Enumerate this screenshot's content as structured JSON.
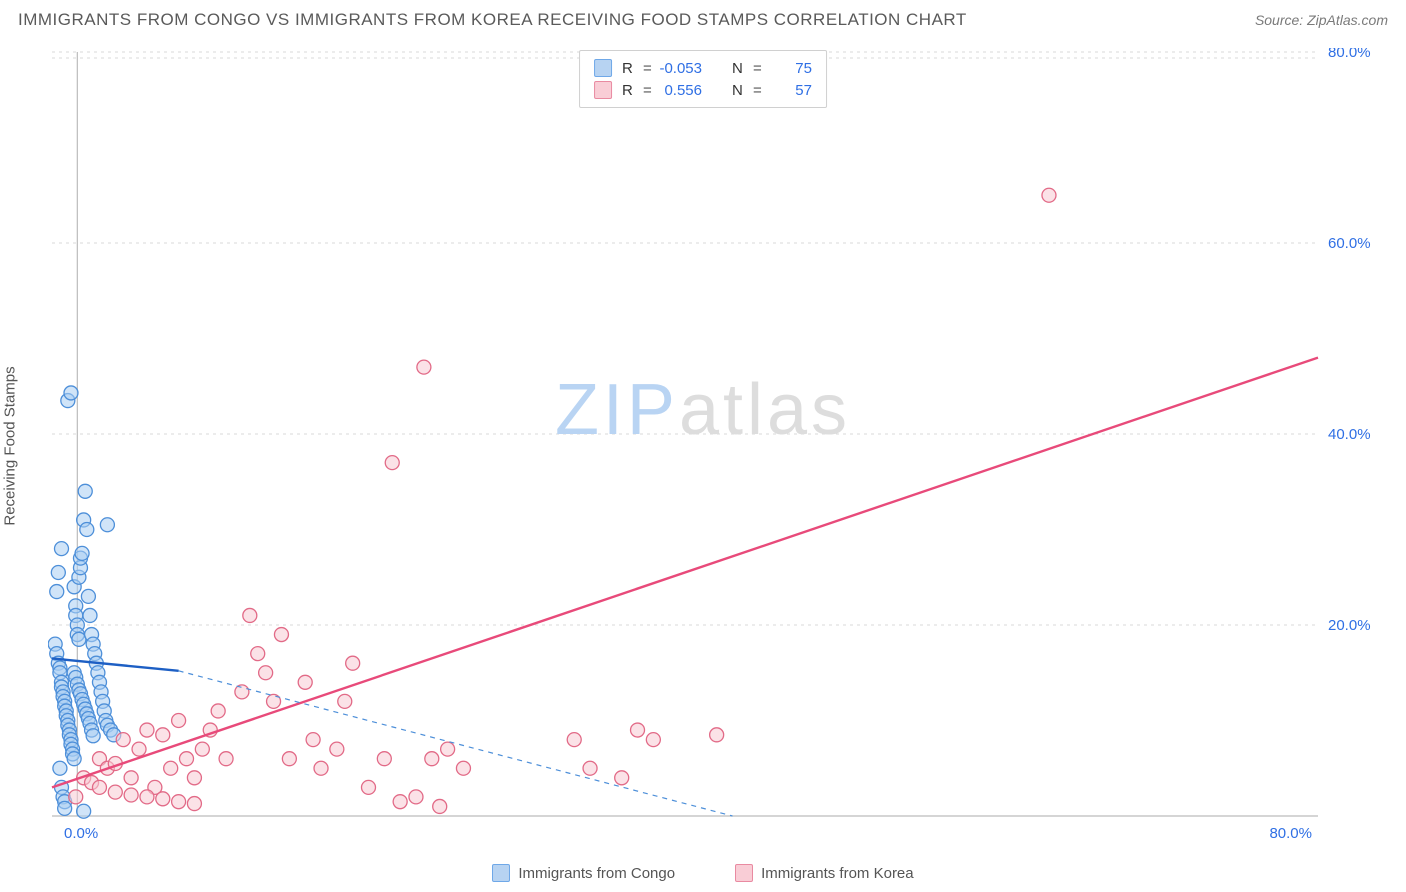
{
  "header": {
    "title": "IMMIGRANTS FROM CONGO VS IMMIGRANTS FROM KOREA RECEIVING FOOD STAMPS CORRELATION CHART",
    "source": "Source: ZipAtlas.com"
  },
  "y_axis_label": "Receiving Food Stamps",
  "watermark": {
    "left": "ZIP",
    "right": "atlas"
  },
  "legend": {
    "series_a": {
      "label": "Immigrants from Congo",
      "fill": "#b7d3f2",
      "stroke": "#6fa8e8"
    },
    "series_b": {
      "label": "Immigrants from Korea",
      "fill": "#f9cdd6",
      "stroke": "#e98aa1"
    }
  },
  "stats": {
    "a": {
      "R": "-0.053",
      "N": "75"
    },
    "b": {
      "R": "0.556",
      "N": "57"
    },
    "value_color": "#2f6fe4"
  },
  "chart": {
    "type": "scatter",
    "background_color": "#ffffff",
    "grid_color": "#d8d8d8",
    "axis_color": "#bcbcbc",
    "tick_color": "#2f6fe4",
    "tick_fontsize": 15,
    "xlim": [
      0,
      80
    ],
    "ylim": [
      0,
      80
    ],
    "x_ticks": [
      {
        "v": 0,
        "label": "0.0%"
      },
      {
        "v": 80,
        "label": "80.0%"
      }
    ],
    "y_ticks": [
      {
        "v": 20,
        "label": "20.0%"
      },
      {
        "v": 40,
        "label": "40.0%"
      },
      {
        "v": 60,
        "label": "60.0%"
      },
      {
        "v": 80,
        "label": "80.0%"
      }
    ],
    "y_axis_offset_percent": 2,
    "marker_radius": 7,
    "marker_stroke_width": 1.3,
    "marker_opacity": 0.55,
    "series_a": {
      "color_fill": "#a9cdf2",
      "color_stroke": "#4d8fd9",
      "points": [
        [
          0.2,
          18
        ],
        [
          0.3,
          17
        ],
        [
          0.4,
          16
        ],
        [
          0.5,
          15.5
        ],
        [
          0.5,
          15
        ],
        [
          0.6,
          14
        ],
        [
          0.6,
          13.5
        ],
        [
          0.7,
          13
        ],
        [
          0.7,
          12.5
        ],
        [
          0.8,
          12
        ],
        [
          0.8,
          11.5
        ],
        [
          0.9,
          11
        ],
        [
          0.9,
          10.5
        ],
        [
          1.0,
          10
        ],
        [
          1.0,
          9.5
        ],
        [
          1.1,
          9
        ],
        [
          1.1,
          8.5
        ],
        [
          1.2,
          8
        ],
        [
          1.2,
          7.5
        ],
        [
          1.3,
          7
        ],
        [
          1.3,
          6.5
        ],
        [
          1.4,
          6
        ],
        [
          1.4,
          24
        ],
        [
          1.5,
          22
        ],
        [
          1.5,
          21
        ],
        [
          1.6,
          20
        ],
        [
          1.6,
          19
        ],
        [
          1.7,
          18.5
        ],
        [
          1.7,
          25
        ],
        [
          1.8,
          26
        ],
        [
          1.8,
          27
        ],
        [
          1.9,
          27.5
        ],
        [
          2.0,
          31
        ],
        [
          2.1,
          34
        ],
        [
          2.2,
          30
        ],
        [
          2.3,
          23
        ],
        [
          2.4,
          21
        ],
        [
          2.5,
          19
        ],
        [
          2.6,
          18
        ],
        [
          2.7,
          17
        ],
        [
          2.8,
          16
        ],
        [
          2.9,
          15
        ],
        [
          3.0,
          14
        ],
        [
          3.1,
          13
        ],
        [
          3.2,
          12
        ],
        [
          3.3,
          11
        ],
        [
          3.4,
          10
        ],
        [
          3.5,
          9.5
        ],
        [
          3.7,
          9
        ],
        [
          3.9,
          8.5
        ],
        [
          1.0,
          43.5
        ],
        [
          1.2,
          44.3
        ],
        [
          3.5,
          30.5
        ],
        [
          0.5,
          5
        ],
        [
          0.6,
          3
        ],
        [
          0.7,
          2
        ],
        [
          0.8,
          1.5
        ],
        [
          0.8,
          0.8
        ],
        [
          2.0,
          0.5
        ],
        [
          0.3,
          23.5
        ],
        [
          0.4,
          25.5
        ],
        [
          0.6,
          28
        ],
        [
          1.4,
          15
        ],
        [
          1.5,
          14.5
        ],
        [
          1.6,
          13.8
        ],
        [
          1.7,
          13.2
        ],
        [
          1.8,
          12.8
        ],
        [
          1.9,
          12.2
        ],
        [
          2.0,
          11.7
        ],
        [
          2.1,
          11.2
        ],
        [
          2.2,
          10.7
        ],
        [
          2.3,
          10.2
        ],
        [
          2.4,
          9.7
        ],
        [
          2.5,
          9
        ],
        [
          2.6,
          8.4
        ]
      ],
      "trend": {
        "x1": 0,
        "y1": 16.5,
        "x2": 8,
        "y2": 15.2,
        "color": "#1d5fc4",
        "width": 2.4
      },
      "trend_extend": {
        "x1": 8,
        "y1": 15.2,
        "x2": 43,
        "y2": 0,
        "color": "#4d8fd9",
        "width": 1.2,
        "dash": "5 5"
      }
    },
    "series_b": {
      "color_fill": "#f8cad4",
      "color_stroke": "#e26a87",
      "points": [
        [
          1.5,
          2
        ],
        [
          2,
          4
        ],
        [
          2.5,
          3.5
        ],
        [
          3,
          6
        ],
        [
          3.5,
          5
        ],
        [
          4,
          5.5
        ],
        [
          4.5,
          8
        ],
        [
          5,
          4
        ],
        [
          5.5,
          7
        ],
        [
          6,
          9
        ],
        [
          6.5,
          3
        ],
        [
          7,
          8.5
        ],
        [
          7.5,
          5
        ],
        [
          8,
          10
        ],
        [
          8.5,
          6
        ],
        [
          9,
          4
        ],
        [
          9.5,
          7
        ],
        [
          10,
          9
        ],
        [
          10.5,
          11
        ],
        [
          11,
          6
        ],
        [
          12,
          13
        ],
        [
          12.5,
          21
        ],
        [
          13,
          17
        ],
        [
          13.5,
          15
        ],
        [
          14,
          12
        ],
        [
          14.5,
          19
        ],
        [
          15,
          6
        ],
        [
          16,
          14
        ],
        [
          16.5,
          8
        ],
        [
          17,
          5
        ],
        [
          18,
          7
        ],
        [
          18.5,
          12
        ],
        [
          19,
          16
        ],
        [
          20,
          3
        ],
        [
          21,
          6
        ],
        [
          22,
          1.5
        ],
        [
          23,
          2
        ],
        [
          24,
          6
        ],
        [
          24.5,
          1
        ],
        [
          25,
          7
        ],
        [
          26,
          5
        ],
        [
          21.5,
          37
        ],
        [
          23.5,
          47
        ],
        [
          33,
          8
        ],
        [
          34,
          5
        ],
        [
          36,
          4
        ],
        [
          37,
          9
        ],
        [
          38,
          8
        ],
        [
          42,
          8.5
        ],
        [
          63,
          65
        ],
        [
          3,
          3
        ],
        [
          4,
          2.5
        ],
        [
          5,
          2.2
        ],
        [
          6,
          2
        ],
        [
          7,
          1.8
        ],
        [
          8,
          1.5
        ],
        [
          9,
          1.3
        ]
      ],
      "trend": {
        "x1": 0,
        "y1": 3,
        "x2": 80,
        "y2": 48,
        "color": "#e84a7a",
        "width": 2.4
      }
    }
  }
}
